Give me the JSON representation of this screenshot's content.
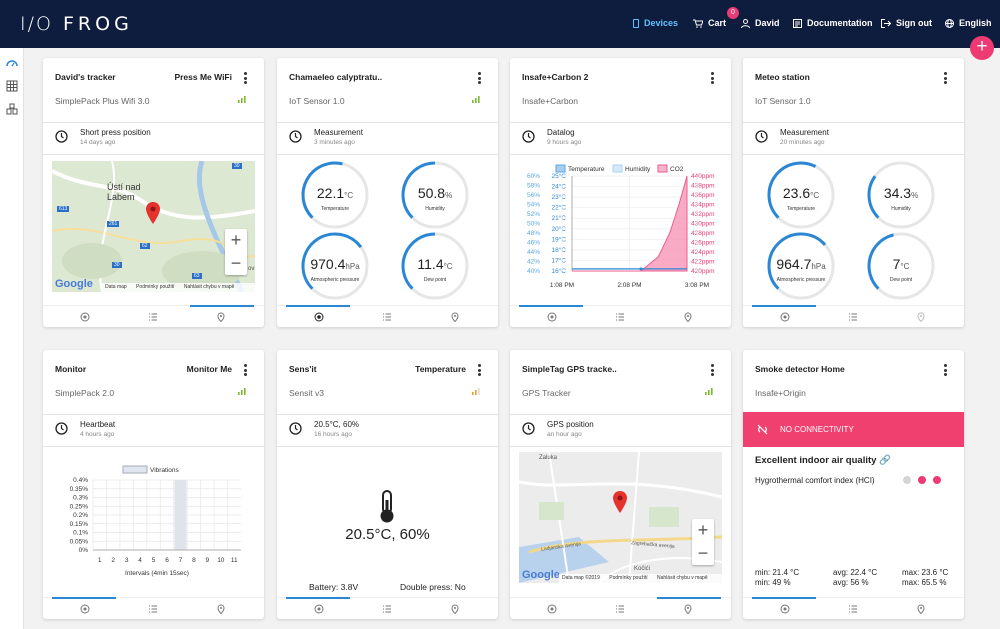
{
  "header": {
    "logo_io": "I/O",
    "logo_frog": "FROG",
    "nav": {
      "devices": "Devices",
      "cart": "Cart",
      "cart_count": "0",
      "user": "David",
      "docs": "Documentation",
      "signout": "Sign out",
      "lang": "English"
    },
    "fab": "+"
  },
  "cards": {
    "c1": {
      "title": "David's tracker",
      "right": "Press Me WiFi",
      "sub": "SimplePack Plus Wifi 3.0",
      "state": "Short press position",
      "time": "14 days ago",
      "map": {
        "city1": "Ústí nad",
        "city2": "Labem",
        "r1": "613",
        "r2": "261",
        "r3": "30",
        "r4": "62",
        "r5": "63",
        "r6": "30",
        "plus": "+",
        "minus": "−",
        "google": "Google",
        "f1": "Data map",
        "f2": "Podmínky použití",
        "f3": "Nahlásit chybu v mapě",
        "bv": "ov"
      }
    },
    "c2": {
      "title": "Chamaeleo calyptratu..",
      "sub": "IoT Sensor 1.0",
      "state": "Measurement",
      "time": "3 minutes ago",
      "g": [
        {
          "v": "22.1",
          "u": "°C",
          "l": "Temperature",
          "f": 0.55
        },
        {
          "v": "50.8",
          "u": "%",
          "l": "Humidity",
          "f": 0.5
        },
        {
          "v": "970.4",
          "u": "hPa",
          "l": "Atmospheric pressure",
          "f": 0.7
        },
        {
          "v": "11.4",
          "u": "°C",
          "l": "Dew point",
          "f": 0.5
        }
      ]
    },
    "c3": {
      "title": "Insafe+Carbon 2",
      "sub": "Insafe+Carbon",
      "state": "Datalog",
      "time": "9 hours ago"
    },
    "c4": {
      "title": "Meteo station",
      "sub": "IoT Sensor 1.0",
      "state": "Measurement",
      "time": "20 minutes ago",
      "g": [
        {
          "v": "23.6",
          "u": "°C",
          "l": "Temperature",
          "f": 0.6
        },
        {
          "v": "34.3",
          "u": "%",
          "l": "Humidity",
          "f": 0.3
        },
        {
          "v": "964.7",
          "u": "hPa",
          "l": "Atmospheric pressure",
          "f": 0.68
        },
        {
          "v": "7",
          "u": "°C",
          "l": "Dew point",
          "f": 0.45
        }
      ]
    },
    "c5": {
      "title": "Monitor",
      "right": "Monitor Me",
      "sub": "SimplePack 2.0",
      "state": "Heartbeat",
      "time": "4 hours ago"
    },
    "c6": {
      "title": "Sens'it",
      "right": "Temperature",
      "sub": "Sensit v3",
      "state": "20.5°C, 60%",
      "time": "16 hours ago",
      "big": "20.5°C, 60%",
      "battery": "Battery: 3.8V",
      "double": "Double press: No"
    },
    "c7": {
      "title": "SimpleTag GPS tracke..",
      "sub": "GPS Tracker",
      "state": "GPS position",
      "time": "an hour ago",
      "map": {
        "l1": "Zaluka",
        "l2": "Ladjanska avenija",
        "l3": "Zagrebačka avenija",
        "l4": "Kočići",
        "plus": "+",
        "minus": "−",
        "google": "Google",
        "f1": "Data map ©2019",
        "f2": "Podmínky použití",
        "f3": "Nahlásit chybu v mapě"
      }
    },
    "c8": {
      "title": "Smoke detector Home",
      "sub": "Insafe+Origin",
      "nocon": "NO CONNECTIVITY",
      "quality": "Excellent indoor air quality",
      "comfort": "Hygrothermal comfort index (HCI)",
      "stats": [
        "min: 21.4 °C",
        "avg: 22.4 °C",
        "max: 23.6 °C",
        "min: 49 %",
        "avg: 56 %",
        "max: 65.5 %"
      ]
    }
  },
  "chart_data": [
    {
      "type": "area",
      "legend": [
        "Temperature",
        "Humidity",
        "CO2"
      ],
      "x_ticks": [
        "1:08 PM",
        "2:08 PM",
        "3:08 PM"
      ],
      "y_left_humidity": [
        "60%",
        "58%",
        "56%",
        "54%",
        "52%",
        "50%",
        "48%",
        "46%",
        "44%",
        "42%",
        "40%"
      ],
      "y_left_temperature": [
        "25°C",
        "24°C",
        "23°C",
        "22°C",
        "21°C",
        "20°C",
        "19°C",
        "18°C",
        "17°C",
        "16°C"
      ],
      "y_right_co2": [
        "440ppm",
        "438ppm",
        "436ppm",
        "434ppm",
        "432ppm",
        "430ppm",
        "428ppm",
        "426ppm",
        "424ppm",
        "422ppm",
        "420ppm"
      ],
      "series": [
        {
          "name": "CO2",
          "x": [
            0,
            0.6,
            0.75,
            0.85,
            0.93,
            1.0
          ],
          "values": [
            420,
            420,
            423,
            428,
            434,
            440
          ]
        },
        {
          "name": "Temperature",
          "x": [
            0,
            1
          ],
          "values": [
            16.2,
            16.2
          ]
        }
      ],
      "colors": {
        "Temperature": "#5aa8e6",
        "Humidity": "#a8d4f3",
        "CO2": "#ee5d8c"
      }
    },
    {
      "type": "bar",
      "legend": [
        "Vibrations"
      ],
      "categories": [
        "1",
        "2",
        "3",
        "4",
        "5",
        "6",
        "7",
        "8",
        "9",
        "10",
        "11"
      ],
      "values": [
        0,
        0,
        0,
        0,
        0,
        0,
        0.4,
        0,
        0,
        0,
        0
      ],
      "y_ticks": [
        "0.4%",
        "0.35%",
        "0.3%",
        "0.25%",
        "0.2%",
        "0.15%",
        "0.1%",
        "0.05%",
        "0%"
      ],
      "xlabel": "Intervals (4min 15sec)",
      "ylim": [
        0,
        0.4
      ]
    }
  ]
}
